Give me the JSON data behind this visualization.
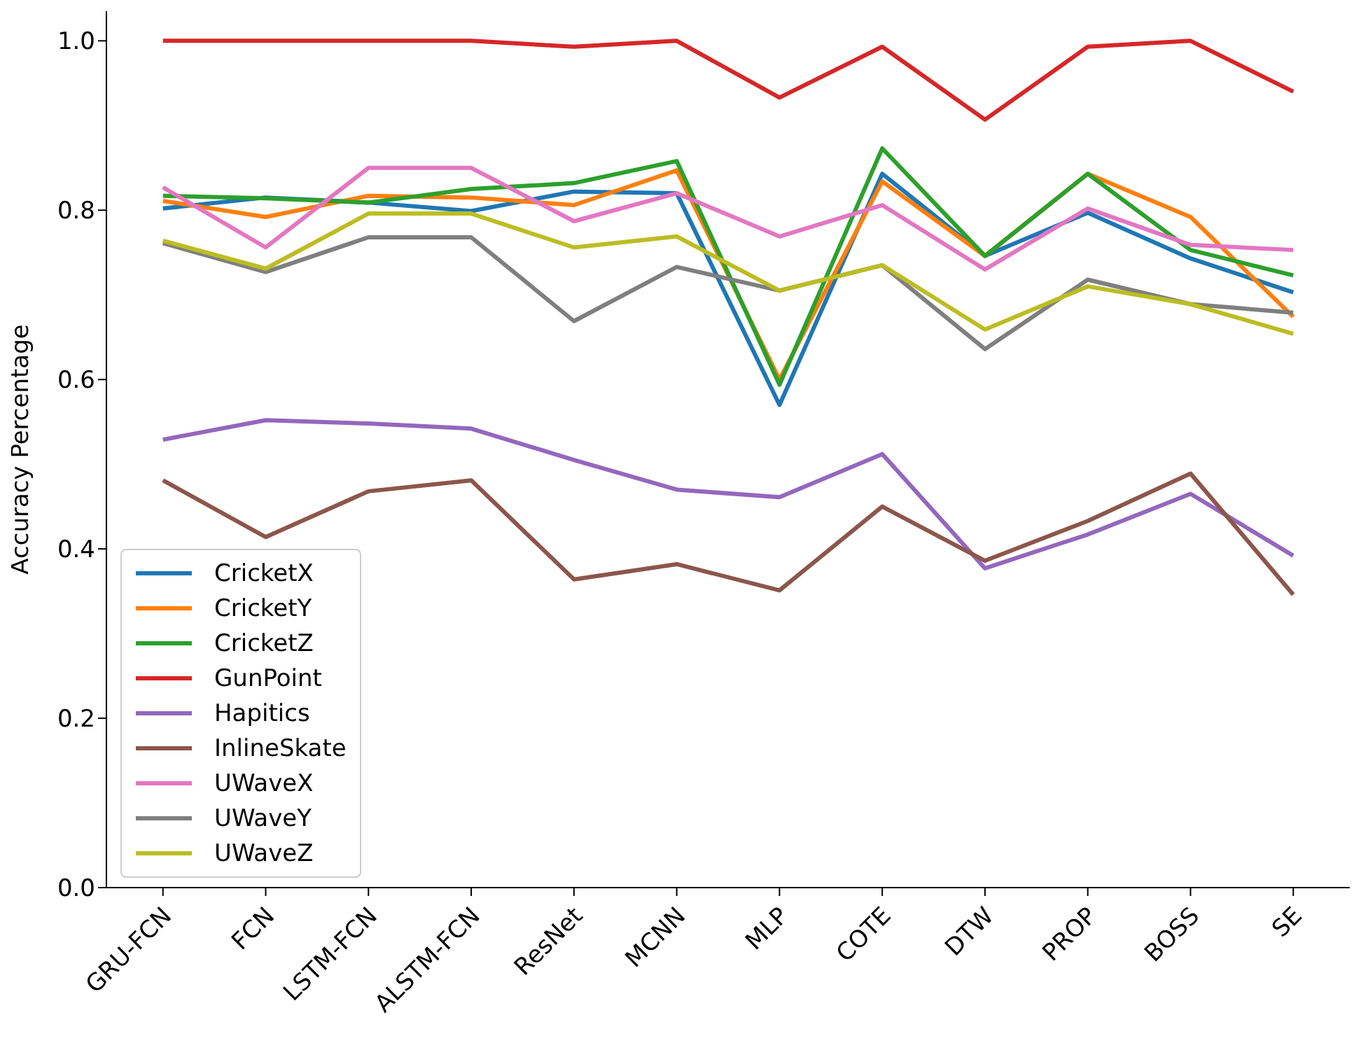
{
  "chart_data": {
    "type": "line",
    "ylabel": "Accuracy Percentage",
    "categories": [
      "GRU-FCN",
      "FCN",
      "LSTM-FCN",
      "ALSTM-FCN",
      "ResNet",
      "MCNN",
      "MLP",
      "COTE",
      "DTW",
      "PROP",
      "BOSS",
      "SE"
    ],
    "series": [
      {
        "name": "CricketX",
        "color": "#1f77b4",
        "values": [
          0.802,
          0.815,
          0.809,
          0.799,
          0.822,
          0.82,
          0.57,
          0.843,
          0.746,
          0.797,
          0.743,
          0.703
        ]
      },
      {
        "name": "CricketY",
        "color": "#ff7f0e",
        "values": [
          0.811,
          0.792,
          0.817,
          0.815,
          0.806,
          0.847,
          0.6,
          0.834,
          0.746,
          0.843,
          0.792,
          0.674
        ]
      },
      {
        "name": "CricketZ",
        "color": "#2ca02c",
        "values": [
          0.817,
          0.814,
          0.809,
          0.825,
          0.832,
          0.858,
          0.594,
          0.873,
          0.746,
          0.843,
          0.753,
          0.723
        ]
      },
      {
        "name": "GunPoint",
        "color": "#d62728",
        "values": [
          1.0,
          1.0,
          1.0,
          1.0,
          0.993,
          1.0,
          0.933,
          0.993,
          0.907,
          0.993,
          1.0,
          0.94
        ]
      },
      {
        "name": "Hapitics",
        "color": "#9467bd",
        "values": [
          0.529,
          0.552,
          0.548,
          0.542,
          0.505,
          0.47,
          0.461,
          0.512,
          0.377,
          0.417,
          0.465,
          0.392
        ]
      },
      {
        "name": "InlineSkate",
        "color": "#8c564b",
        "values": [
          0.481,
          0.414,
          0.468,
          0.481,
          0.364,
          0.382,
          0.351,
          0.45,
          0.386,
          0.433,
          0.489,
          0.346
        ]
      },
      {
        "name": "UWaveX",
        "color": "#e377c2",
        "values": [
          0.827,
          0.756,
          0.85,
          0.85,
          0.787,
          0.82,
          0.769,
          0.806,
          0.73,
          0.802,
          0.759,
          0.753
        ]
      },
      {
        "name": "UWaveY",
        "color": "#7f7f7f",
        "values": [
          0.761,
          0.727,
          0.768,
          0.768,
          0.669,
          0.733,
          0.705,
          0.735,
          0.636,
          0.718,
          0.689,
          0.679
        ]
      },
      {
        "name": "UWaveZ",
        "color": "#bcbd22",
        "values": [
          0.764,
          0.731,
          0.796,
          0.796,
          0.756,
          0.769,
          0.705,
          0.735,
          0.659,
          0.71,
          0.689,
          0.654
        ]
      }
    ],
    "ylim": [
      0,
      1.035
    ],
    "yticks": [
      {
        "value": 0,
        "label": "0.0"
      },
      0.2,
      0.4,
      0.6,
      0.8,
      {
        "value": 1,
        "label": "1.0"
      }
    ],
    "grid": false,
    "legend": "bottom left",
    "marker": "none",
    "line_style": "solid"
  }
}
